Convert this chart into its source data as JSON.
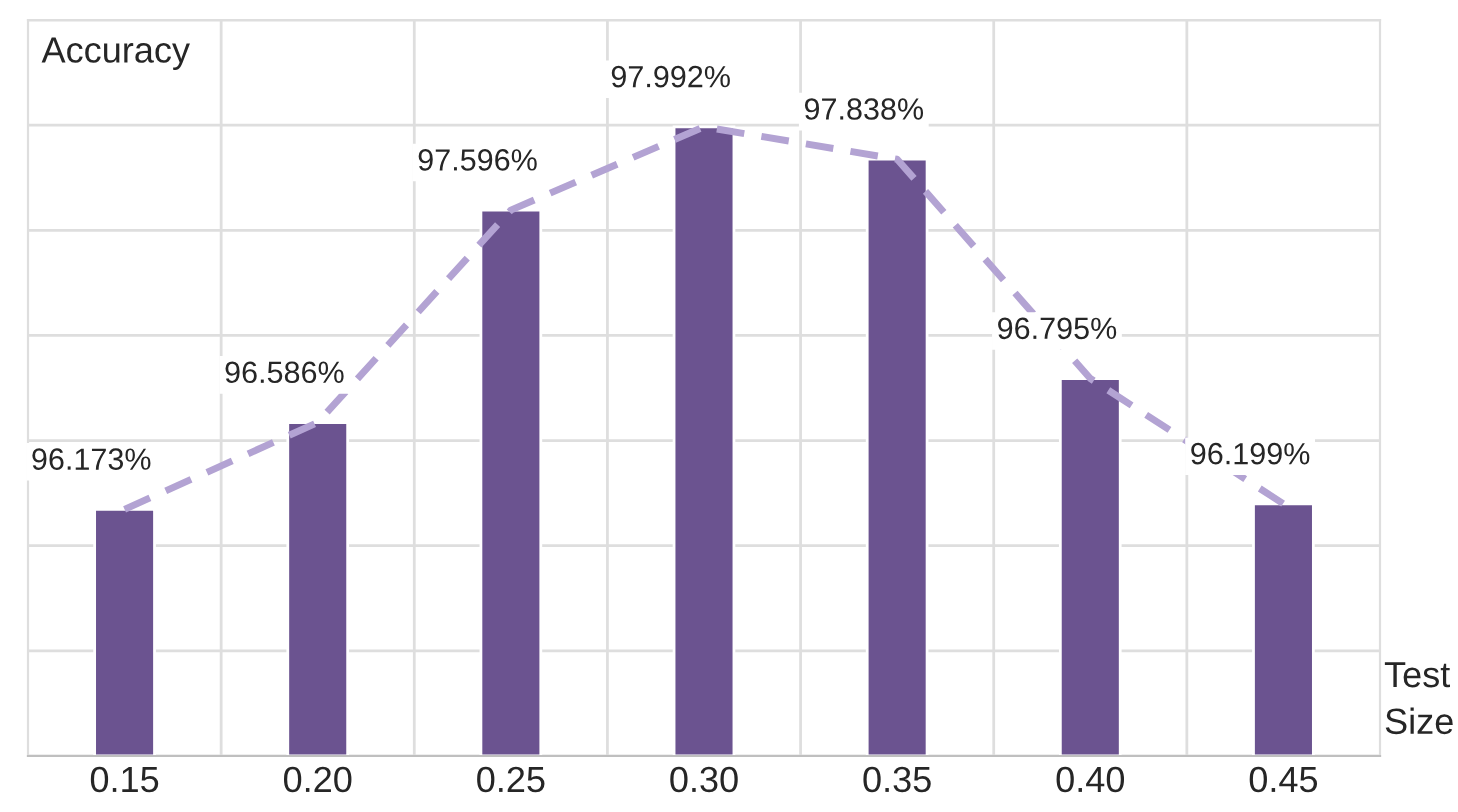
{
  "chart_data": {
    "type": "bar",
    "ylabel": "Accuracy",
    "xlabel": "Test\nSize",
    "categories": [
      "0.15",
      "0.20",
      "0.25",
      "0.30",
      "0.35",
      "0.40",
      "0.45"
    ],
    "series": [
      {
        "color": "#6b5390",
        "values": [
          96.173,
          96.586,
          97.596,
          97.992,
          97.838,
          96.795,
          96.199
        ],
        "value_labels": [
          "96.173%",
          "96.586%",
          "97.596%",
          "97.992%",
          "97.838%",
          "96.795%",
          "96.199%"
        ]
      },
      {
        "type": "line",
        "color": "#b3a3d3",
        "line_style": "dashed",
        "values": [
          96.173,
          96.586,
          97.596,
          97.992,
          97.838,
          96.795,
          96.199
        ]
      }
    ],
    "ylim": [
      95,
      98.5
    ],
    "yticks": [
      {
        "value": 95,
        "label": null
      },
      {
        "value": 95.5,
        "label": null
      },
      {
        "value": 96,
        "label": null
      },
      {
        "value": 96.5,
        "label": null
      },
      {
        "value": 97,
        "label": null
      },
      {
        "value": 97.5,
        "label": null
      },
      {
        "value": 98,
        "label": null
      },
      {
        "value": 98.5,
        "label": null
      }
    ],
    "tick_labels": "x",
    "grid": true,
    "legend": false
  }
}
